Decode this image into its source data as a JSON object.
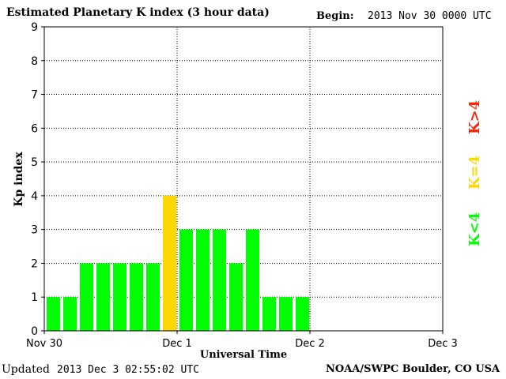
{
  "header": {
    "title": "Estimated Planetary K index (3 hour data)",
    "begin_label": "Begin:",
    "begin_value": "2013 Nov 30 0000 UTC"
  },
  "footer": {
    "updated_label": "Updated",
    "updated_value": "2013 Dec  3 02:55:02 UTC",
    "credit": "NOAA/SWPC Boulder, CO USA"
  },
  "legend": {
    "high": "K>4",
    "equal": "K=4",
    "low": "K<4"
  },
  "colors": {
    "low": "#00ff00",
    "equal": "#ffd700",
    "high": "#ff2200"
  },
  "chart_data": {
    "type": "bar",
    "title": "Estimated Planetary K index (3 hour data)",
    "xlabel": "Universal Time",
    "ylabel": "Kp index",
    "ylim": [
      0,
      9
    ],
    "yticks": [
      "0",
      "1",
      "2",
      "3",
      "4",
      "5",
      "6",
      "7",
      "8",
      "9"
    ],
    "xticks": [
      "Nov 30",
      "Dec 1",
      "Dec 2",
      "Dec 3"
    ],
    "grid": true,
    "slots_per_day": 8,
    "days": 3,
    "values": [
      1,
      1,
      2,
      2,
      2,
      2,
      2,
      4,
      3,
      3,
      3,
      2,
      3,
      1,
      1,
      1
    ]
  }
}
